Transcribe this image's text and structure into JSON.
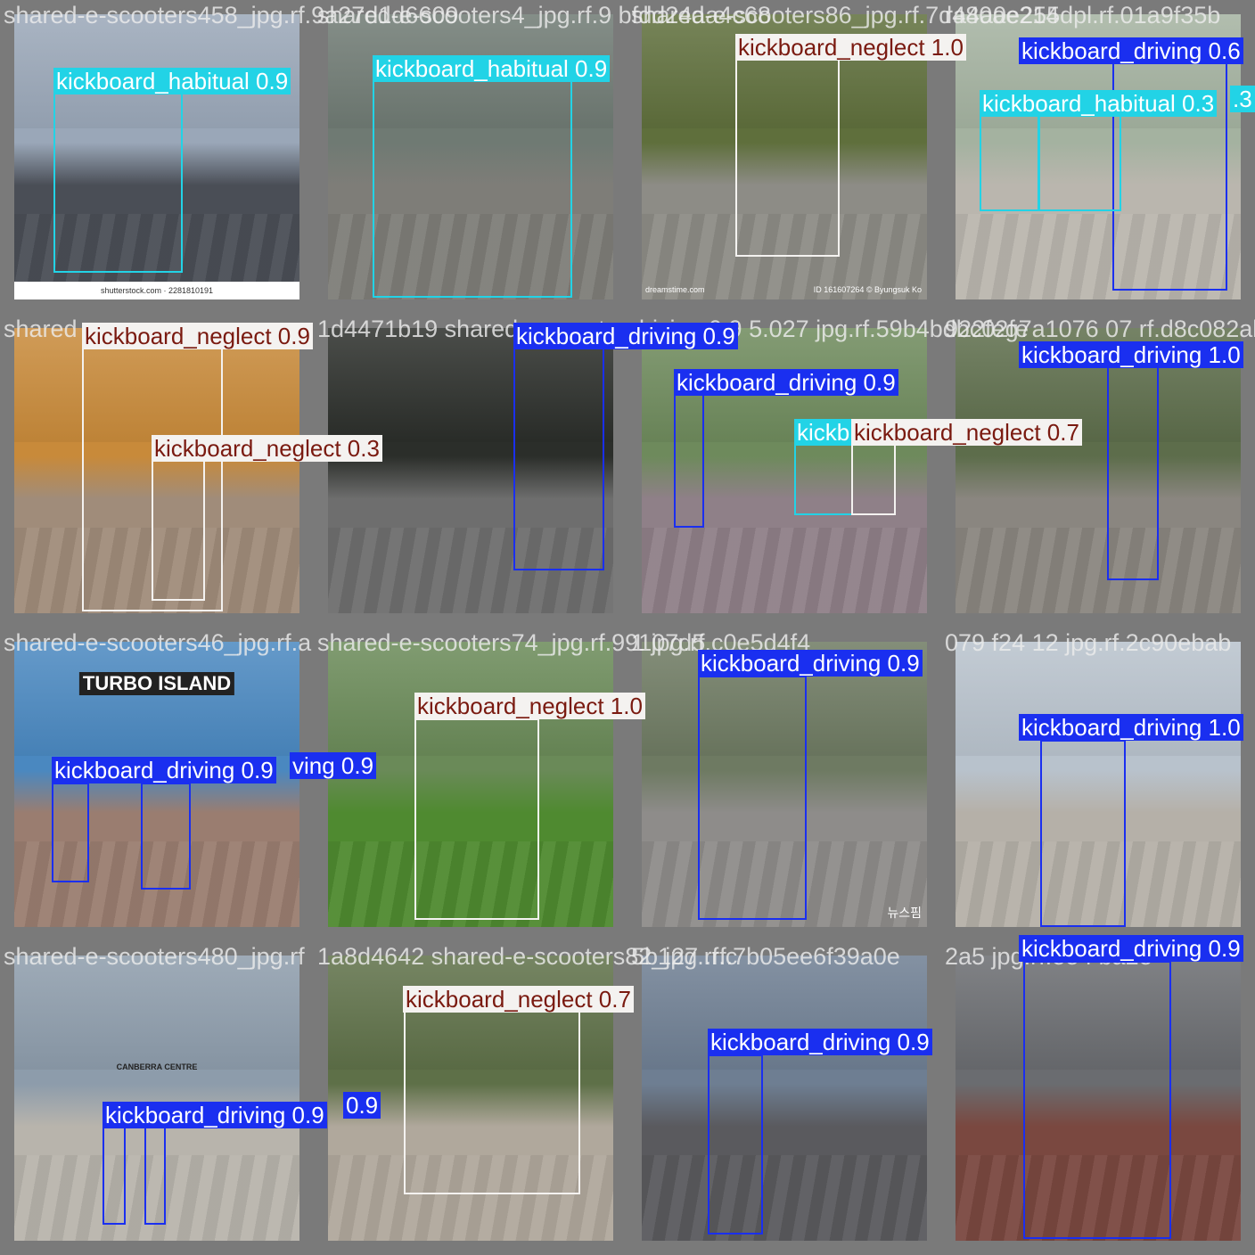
{
  "colors": {
    "habitual": "#22d3e6",
    "neglect": "#f4f2f0",
    "driving": "#1a2ff0",
    "neglect_text": "#7a1a10",
    "habitual_text": "#ffffff",
    "driving_text": "#ffffff"
  },
  "tiles": [
    {
      "filename": "shared-e-scooters458_jpg.rf.9a27d1d6609",
      "photo_colors": [
        "#9aa7b8",
        "#4a4e56"
      ],
      "caption": "shutterstock.com · 2281810191",
      "detections": [
        {
          "cls": "habitual",
          "label": "kickboard_habitual 0.9"
        }
      ]
    },
    {
      "filename": "shared-e-scooters4_jpg.rf.9 bfdd24aa4c68",
      "photo_colors": [
        "#6f7a73",
        "#7e7d78"
      ],
      "detections": [
        {
          "cls": "habitual",
          "label": "kickboard_habitual 0.9"
        }
      ]
    },
    {
      "filename": "shared-e-scooters86_jpg.rf.7d480ae214",
      "photo_colors": [
        "#5f6f3c",
        "#8d8c86"
      ],
      "watermark_left": "dreamstime.com",
      "watermark_right": "ID 161607264 © Byungsuk Ko",
      "detections": [
        {
          "cls": "neglect",
          "label": "kickboard_neglect 1.0"
        }
      ]
    },
    {
      "filename": "ra4a0e255dpl.rf.01a9f35b",
      "photo_colors": [
        "#a4b2a0",
        "#bab6ae"
      ],
      "detections": [
        {
          "cls": "driving",
          "label": "kickboard_driving 0.6"
        },
        {
          "cls": "habitual",
          "label": "kickboard_habitual 0.3"
        },
        {
          "cls": "habitual",
          "label": ".3"
        }
      ]
    },
    {
      "filename": "shared",
      "photo_colors": [
        "#c88a3a",
        "#a08c7a"
      ],
      "detections": [
        {
          "cls": "neglect",
          "label": "kickboard_neglect 0.9"
        },
        {
          "cls": "neglect",
          "label": "kickboard_neglect 0.3"
        }
      ]
    },
    {
      "filename": "1d4471b19 shared-e-scooters",
      "photo_colors": [
        "#2b2e2a",
        "#6e6e6e"
      ],
      "detections": [
        {
          "cls": "driving",
          "label": "kickboard_driving 0.9"
        }
      ]
    },
    {
      "filename": "driving 0.9 5.027 jpg.rf.59b4bdbc02fe",
      "photo_colors": [
        "#6e8a5c",
        "#8f8088"
      ],
      "detections": [
        {
          "cls": "driving",
          "label": "kickboard_driving 0.9"
        },
        {
          "cls": "habitual",
          "label": "kickb"
        },
        {
          "cls": "neglect",
          "label": "kickboard_neglect 0.7"
        }
      ]
    },
    {
      "filename": "922feg7a1076 07 rf.d8c082ab",
      "photo_colors": [
        "#5d6d4b",
        "#8a8680"
      ],
      "detections": [
        {
          "cls": "driving",
          "label": "kickboard_driving 1.0"
        }
      ]
    },
    {
      "filename": "shared-e-scooters46_jpg.rf.a",
      "photo_colors": [
        "#4a88c0",
        "#9a7d70"
      ],
      "sign_text": "TURBO ISLAND",
      "detections": [
        {
          "cls": "driving",
          "label": "kickboard_driving 0.9"
        },
        {
          "cls": "driving",
          "label": "ving 0.9"
        }
      ]
    },
    {
      "filename": "shared-e-scooters74_jpg.rf.99107d5",
      "photo_colors": [
        "#6a8a58",
        "#4f8a30"
      ],
      "detections": [
        {
          "cls": "neglect",
          "label": "kickboard_neglect 1.0"
        }
      ]
    },
    {
      "filename": "1 jpg.rf.c0e5d4f4",
      "photo_colors": [
        "#6e7a62",
        "#8e8c8a"
      ],
      "watermark_right": "뉴스핌",
      "detections": [
        {
          "cls": "driving",
          "label": "kickboard_driving 0.9"
        }
      ]
    },
    {
      "filename": "079 f24 12 jpg.rf.2c90ebab",
      "photo_colors": [
        "#b8c2cc",
        "#b5b0a8"
      ],
      "detections": [
        {
          "cls": "driving",
          "label": "kickboard_driving 1.0"
        }
      ]
    },
    {
      "filename": "shared-e-scooters480_jpg.rf",
      "photo_colors": [
        "#8d9cab",
        "#b8b4ac"
      ],
      "sign_text": "CANBERRA CENTRE",
      "detections": [
        {
          "cls": "driving",
          "label": "kickboard_driving 0.9"
        },
        {
          "cls": "driving",
          "label": "0.9"
        }
      ]
    },
    {
      "filename": "1a8d4642 shared-e-scooters82_jpg.rf.c",
      "photo_colors": [
        "#5e7048",
        "#b0a89c"
      ],
      "detections": [
        {
          "cls": "neglect",
          "label": "kickboard_neglect 0.7"
        }
      ]
    },
    {
      "filename": "5b127 .rf.7b05ee6f39a0e",
      "photo_colors": [
        "#6e7e92",
        "#5a5a5e"
      ],
      "detections": [
        {
          "cls": "driving",
          "label": "kickboard_driving 0.9"
        }
      ]
    },
    {
      "filename": "2a5 jpg.rf.ee f ba2e",
      "photo_colors": [
        "#6a6c70",
        "#7a4840"
      ],
      "detections": [
        {
          "cls": "driving",
          "label": "kickboard_driving 0.9"
        }
      ]
    }
  ]
}
